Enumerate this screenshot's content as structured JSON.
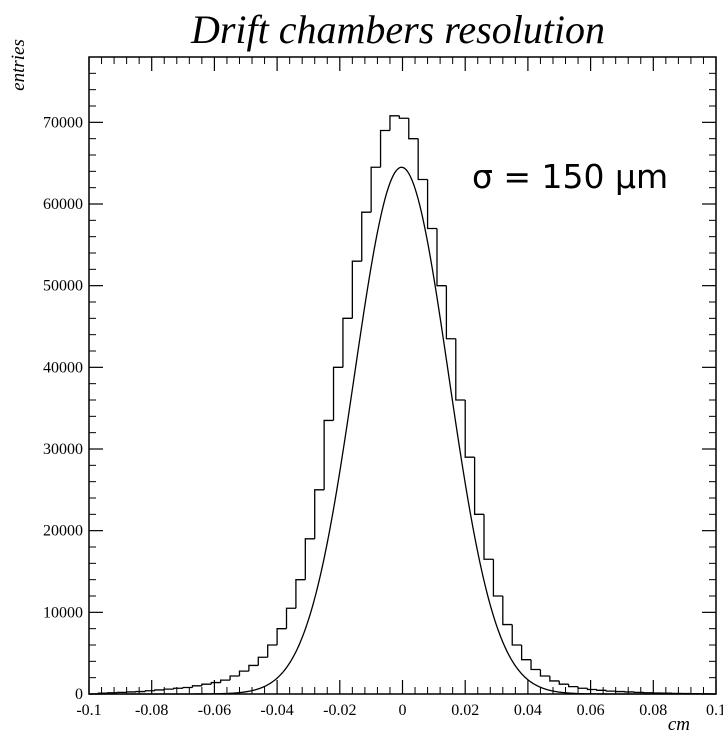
{
  "chart_data": {
    "type": "histogram",
    "title": "Drift chambers resolution",
    "xlabel": "cm",
    "ylabel": "entries",
    "annotation": "σ = 150 μm",
    "xlim": [
      -0.1,
      0.1
    ],
    "ylim": [
      0,
      78000
    ],
    "grid": false,
    "x_ticks": [
      -0.1,
      -0.08,
      -0.06,
      -0.04,
      -0.02,
      0,
      0.02,
      0.04,
      0.06,
      0.08,
      0.1
    ],
    "x_tick_labels": [
      "-0.1",
      "-0.08",
      "-0.06",
      "-0.04",
      "-0.02",
      "0",
      "0.02",
      "0.04",
      "0.06",
      "0.08",
      "0.1"
    ],
    "y_ticks": [
      0,
      10000,
      20000,
      30000,
      40000,
      50000,
      60000,
      70000
    ],
    "y_tick_labels": [
      "0",
      "10000",
      "20000",
      "30000",
      "40000",
      "50000",
      "60000",
      "70000"
    ],
    "histogram": {
      "bin_edges": [
        -0.1,
        -0.097,
        -0.094,
        -0.091,
        -0.088,
        -0.085,
        -0.082,
        -0.079,
        -0.076,
        -0.073,
        -0.07,
        -0.067,
        -0.064,
        -0.061,
        -0.058,
        -0.055,
        -0.052,
        -0.049,
        -0.046,
        -0.043,
        -0.04,
        -0.037,
        -0.034,
        -0.031,
        -0.028,
        -0.025,
        -0.022,
        -0.019,
        -0.016,
        -0.013,
        -0.01,
        -0.007,
        -0.004,
        -0.001,
        0.002,
        0.005,
        0.008,
        0.011,
        0.014,
        0.017,
        0.02,
        0.023,
        0.026,
        0.029,
        0.032,
        0.035,
        0.038,
        0.041,
        0.044,
        0.047,
        0.05,
        0.053,
        0.056,
        0.059,
        0.062,
        0.065,
        0.068,
        0.071,
        0.074,
        0.077,
        0.08,
        0.083,
        0.086,
        0.089,
        0.092,
        0.095,
        0.098,
        0.1
      ],
      "counts": [
        0,
        100,
        150,
        200,
        250,
        300,
        400,
        500,
        600,
        700,
        800,
        1000,
        1200,
        1400,
        1700,
        2200,
        2800,
        3500,
        4500,
        6000,
        8000,
        10500,
        14000,
        19000,
        25000,
        33500,
        40000,
        46000,
        53000,
        59000,
        64500,
        69000,
        70800,
        70500,
        68000,
        63000,
        57000,
        50000,
        43500,
        36000,
        29000,
        22000,
        16500,
        12000,
        8500,
        6000,
        4200,
        3000,
        2200,
        1600,
        1200,
        900,
        700,
        550,
        450,
        350,
        300,
        250,
        200,
        150,
        120,
        100,
        80,
        60,
        40,
        20,
        0
      ]
    },
    "fit": {
      "type": "gaussian",
      "mean": -0.0003,
      "sigma": 0.015,
      "amplitude": 64500
    }
  }
}
